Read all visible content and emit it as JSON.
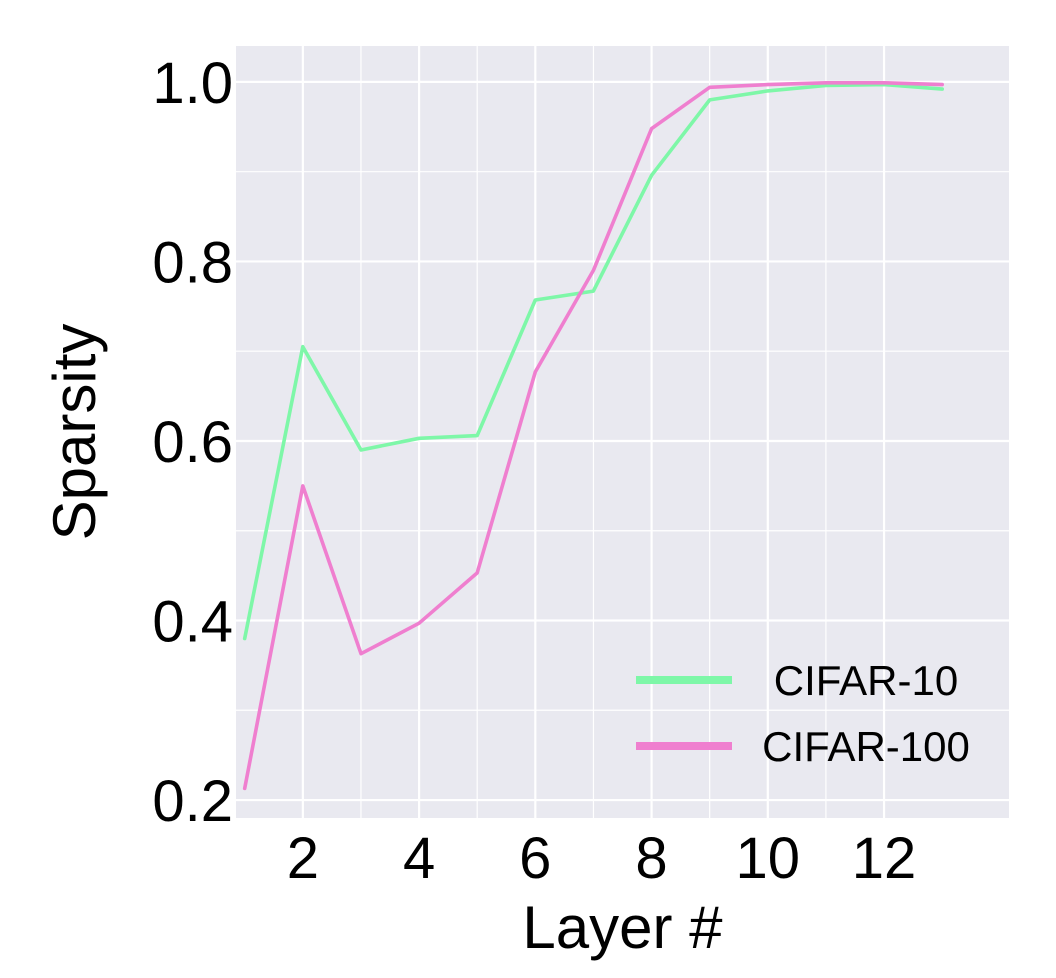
{
  "chart_data": {
    "type": "line",
    "title": "",
    "xlabel": "Layer #",
    "ylabel": "Sparsity",
    "xlim": [
      0.85,
      14.15
    ],
    "ylim": [
      0.18,
      1.04
    ],
    "xticks": [
      2,
      4,
      6,
      8,
      10,
      12
    ],
    "yticks": [
      0.2,
      0.4,
      0.6,
      0.8,
      1.0
    ],
    "ytick_labels": [
      "0.2",
      "0.4",
      "0.6",
      "0.8",
      "1.0"
    ],
    "x": [
      1,
      2,
      3,
      4,
      5,
      6,
      7,
      8,
      9,
      10,
      11,
      12,
      13
    ],
    "series": [
      {
        "name": "CIFAR-10",
        "color": "#7ef7a8",
        "values": [
          0.38,
          0.705,
          0.59,
          0.603,
          0.606,
          0.757,
          0.767,
          0.896,
          0.98,
          0.99,
          0.996,
          0.997,
          0.992
        ]
      },
      {
        "name": "CIFAR-100",
        "color": "#ef7fcf",
        "values": [
          0.213,
          0.55,
          0.363,
          0.397,
          0.453,
          0.677,
          0.79,
          0.948,
          0.994,
          0.997,
          0.999,
          0.999,
          0.997
        ]
      }
    ],
    "grid": true,
    "background": "#e9e9f0",
    "legend_position": "bottom-right"
  }
}
